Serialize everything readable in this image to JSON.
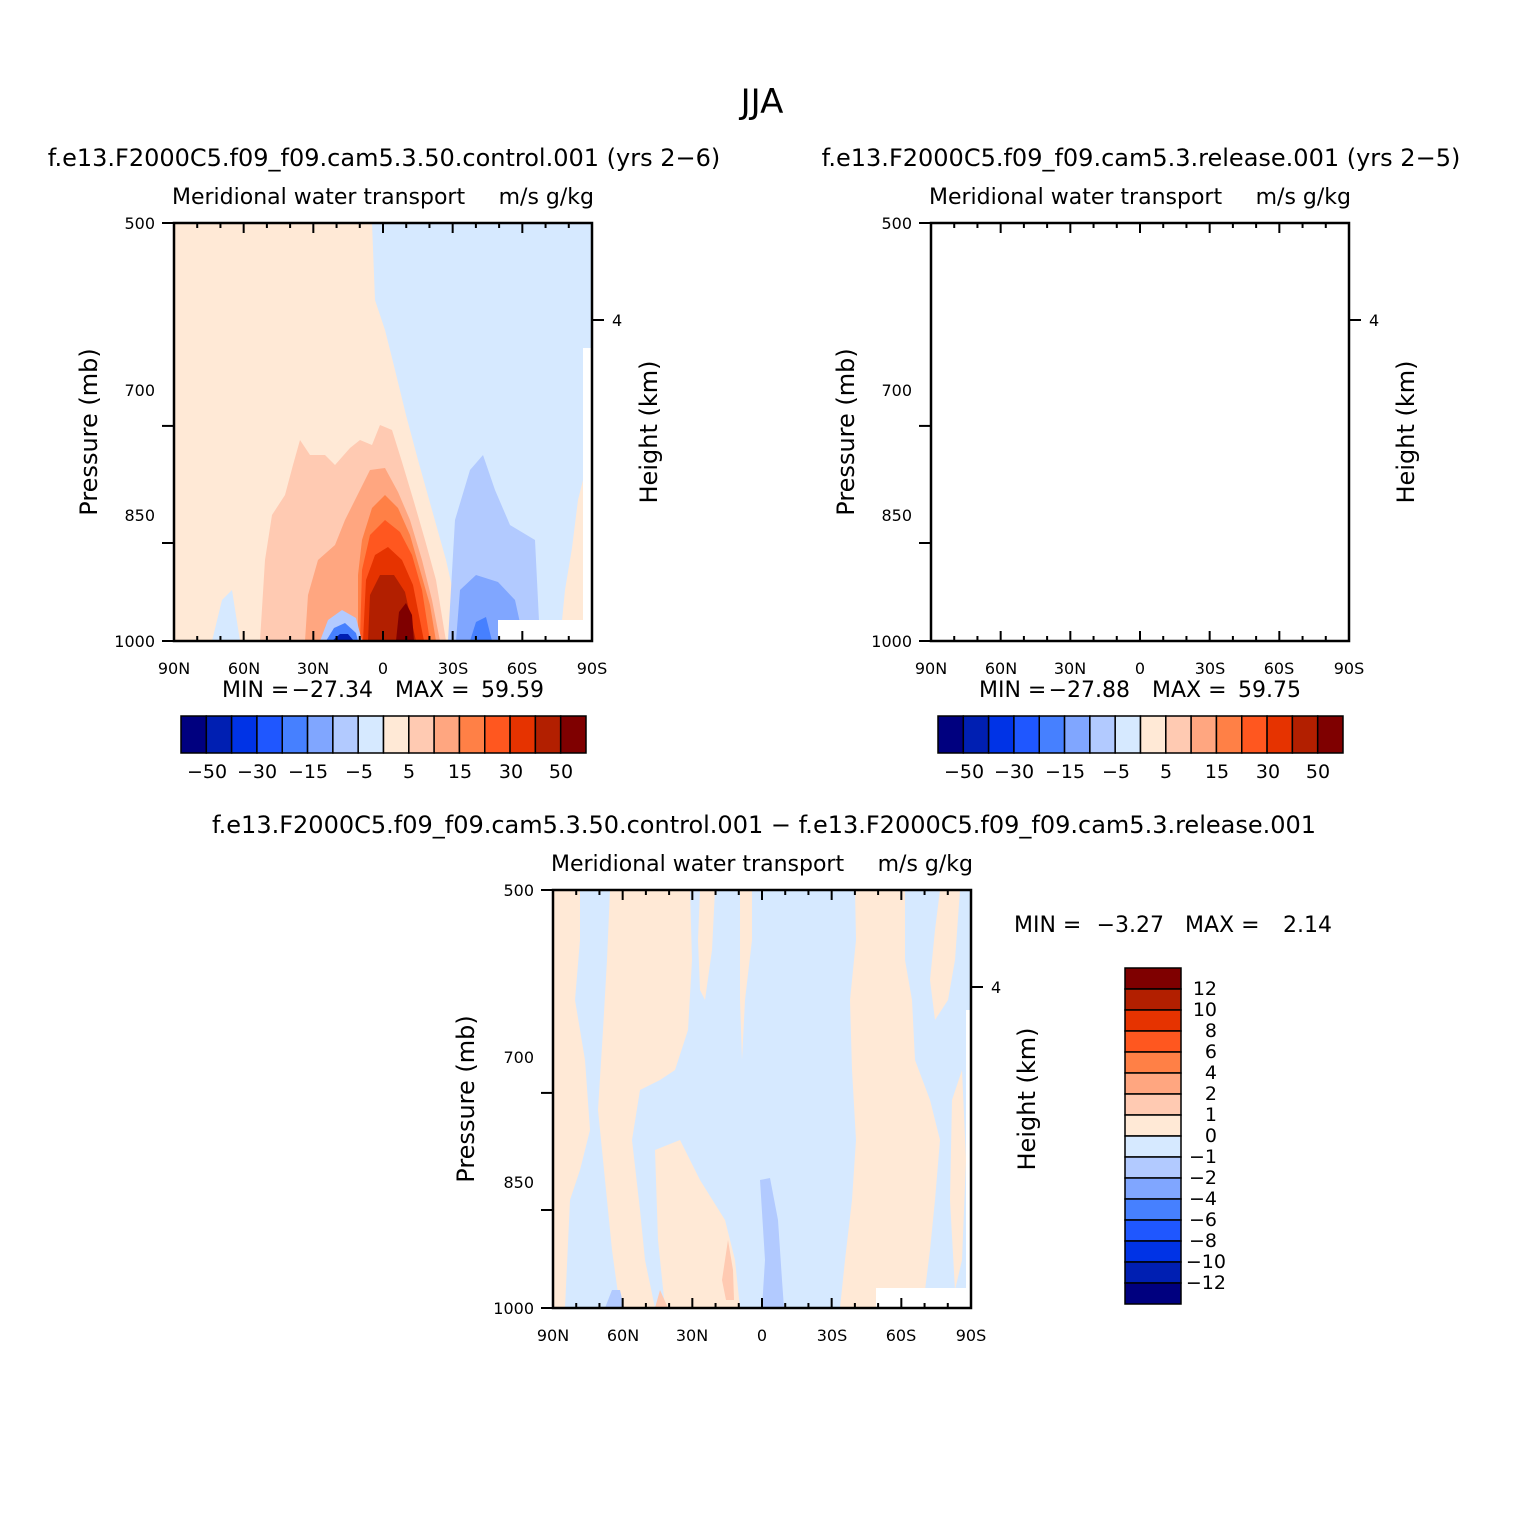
{
  "figure": {
    "season": "JJA"
  },
  "colors": {
    "neg": [
      "#00007f",
      "#001fb2",
      "#0033e6",
      "#1f57ff",
      "#4680ff",
      "#80a6ff",
      "#b2caff",
      "#d6e9ff"
    ],
    "pos": [
      "#ffe9d6",
      "#ffcab2",
      "#ffa680",
      "#ff8046",
      "#ff571f",
      "#e63300",
      "#b21f00",
      "#7f0000"
    ]
  },
  "chart_data": [
    {
      "type": "heatmap",
      "id": "control",
      "title": "f.e13.F2000C5.f09_f09.cam5.3.50.control.001  (yrs 2-6)",
      "left_label": "Meridional water transport",
      "right_label": "m/s g/kg",
      "ylabel": "Pressure (mb)",
      "ylabel_right": "Height (km)",
      "yticks": [
        "500",
        "700",
        "850",
        "1000"
      ],
      "yticks_right": [
        "4"
      ],
      "xticks": [
        "90N",
        "60N",
        "30N",
        "0",
        "30S",
        "60S",
        "90S"
      ],
      "min_label": "MIN =",
      "min_value": "-27.34",
      "max_label": "MAX =",
      "max_value": "59.59",
      "colorbar_labels": [
        "-50",
        "-30",
        "-15",
        "-5",
        "5",
        "15",
        "30",
        "50"
      ],
      "levels": [
        -50,
        -40,
        -30,
        -20,
        -15,
        -10,
        -5,
        0,
        5,
        10,
        15,
        20,
        30,
        40,
        50
      ]
    },
    {
      "type": "heatmap",
      "id": "release",
      "title": "f.e13.F2000C5.f09_f09.cam5.3.release.001  (yrs 2-5)",
      "left_label": "Meridional water transport",
      "right_label": "m/s g/kg",
      "ylabel": "Pressure (mb)",
      "ylabel_right": "Height (km)",
      "yticks": [
        "500",
        "700",
        "850",
        "1000"
      ],
      "yticks_right": [
        "4"
      ],
      "xticks": [
        "90N",
        "60N",
        "30N",
        "0",
        "30S",
        "60S",
        "90S"
      ],
      "min_label": "MIN =",
      "min_value": "-27.88",
      "max_label": "MAX =",
      "max_value": "59.75",
      "colorbar_labels": [
        "-50",
        "-30",
        "-15",
        "-5",
        "5",
        "15",
        "30",
        "50"
      ],
      "levels": [
        -50,
        -40,
        -30,
        -20,
        -15,
        -10,
        -5,
        0,
        5,
        10,
        15,
        20,
        30,
        40,
        50
      ]
    },
    {
      "type": "heatmap",
      "id": "difference",
      "title": "f.e13.F2000C5.f09_f09.cam5.3.50.control.001 - f.e13.F2000C5.f09_f09.cam5.3.release.001",
      "left_label": "Meridional water transport",
      "right_label": "m/s g/kg",
      "ylabel": "Pressure (mb)",
      "ylabel_right": "Height (km)",
      "yticks": [
        "500",
        "700",
        "850",
        "1000"
      ],
      "yticks_right": [
        "4"
      ],
      "xticks": [
        "90N",
        "60N",
        "30N",
        "0",
        "30S",
        "60S",
        "90S"
      ],
      "min_label": "MIN =",
      "min_value": "-3.27",
      "max_label": "MAX =",
      "max_value": "2.14",
      "colorbar_labels": [
        "12",
        "10",
        "8",
        "6",
        "4",
        "2",
        "1",
        "0",
        "-1",
        "-2",
        "-4",
        "-6",
        "-8",
        "-10",
        "-12"
      ],
      "levels": [
        -12,
        -10,
        -8,
        -6,
        -4,
        -2,
        -1,
        0,
        1,
        2,
        4,
        6,
        8,
        10,
        12
      ]
    }
  ]
}
